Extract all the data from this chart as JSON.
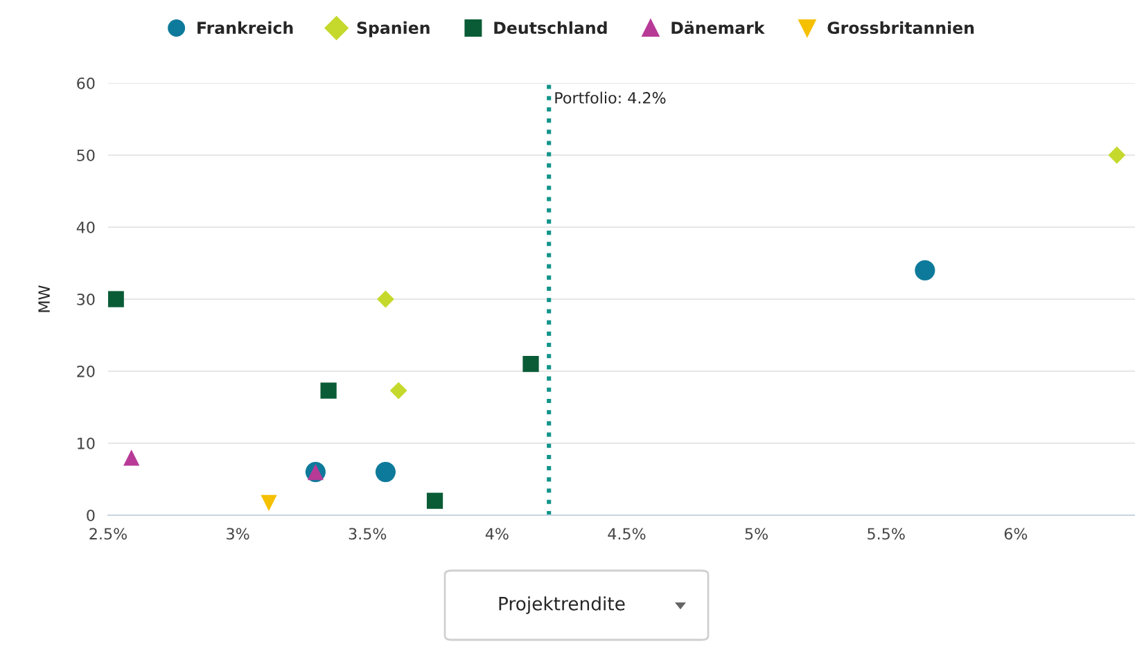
{
  "chart_data": {
    "type": "scatter",
    "xlabel": "Projektrendite",
    "ylabel": "MW",
    "series": [
      {
        "name": "Frankreich",
        "color": "#0e7a9b",
        "marker": "circle",
        "x": [
          3.3,
          3.57,
          5.65
        ],
        "values": [
          6,
          6,
          34
        ]
      },
      {
        "name": "Spanien",
        "color": "#c5d92d",
        "marker": "diamond",
        "x": [
          3.57,
          3.62,
          6.39
        ],
        "values": [
          30,
          17.3,
          50
        ]
      },
      {
        "name": "Deutschland",
        "color": "#0a5c36",
        "marker": "square",
        "x": [
          2.53,
          3.35,
          3.76,
          4.13
        ],
        "values": [
          30,
          17.3,
          2,
          21
        ]
      },
      {
        "name": "Dänemark",
        "color": "#b83a97",
        "marker": "triangle",
        "x": [
          2.59,
          3.3
        ],
        "values": [
          8,
          6
        ]
      },
      {
        "name": "Grossbritannien",
        "color": "#f5c000",
        "marker": "triangle_down",
        "x": [
          3.12
        ],
        "values": [
          1.7
        ]
      }
    ],
    "xlim": [
      2.5,
      6.46
    ],
    "xticks": [
      {
        "value": 2.5,
        "label": "2.5%"
      },
      {
        "value": 3,
        "label": "3%"
      },
      {
        "value": 3.5,
        "label": "3.5%"
      },
      {
        "value": 4,
        "label": "4%"
      },
      {
        "value": 4.5,
        "label": "4.5%"
      },
      {
        "value": 5,
        "label": "5%"
      },
      {
        "value": 5.5,
        "label": "5.5%"
      },
      {
        "value": 6,
        "label": "6%"
      }
    ],
    "ylim": [
      0,
      60
    ],
    "yticks": [
      0,
      10,
      20,
      30,
      40,
      50,
      60
    ],
    "ref_lines": [
      {
        "axis": "x",
        "value": 4.2,
        "label": "Portfolio: 4.2%",
        "color": "#13948a",
        "line_style": "dotted"
      }
    ],
    "grid": "y",
    "legend": "top"
  }
}
